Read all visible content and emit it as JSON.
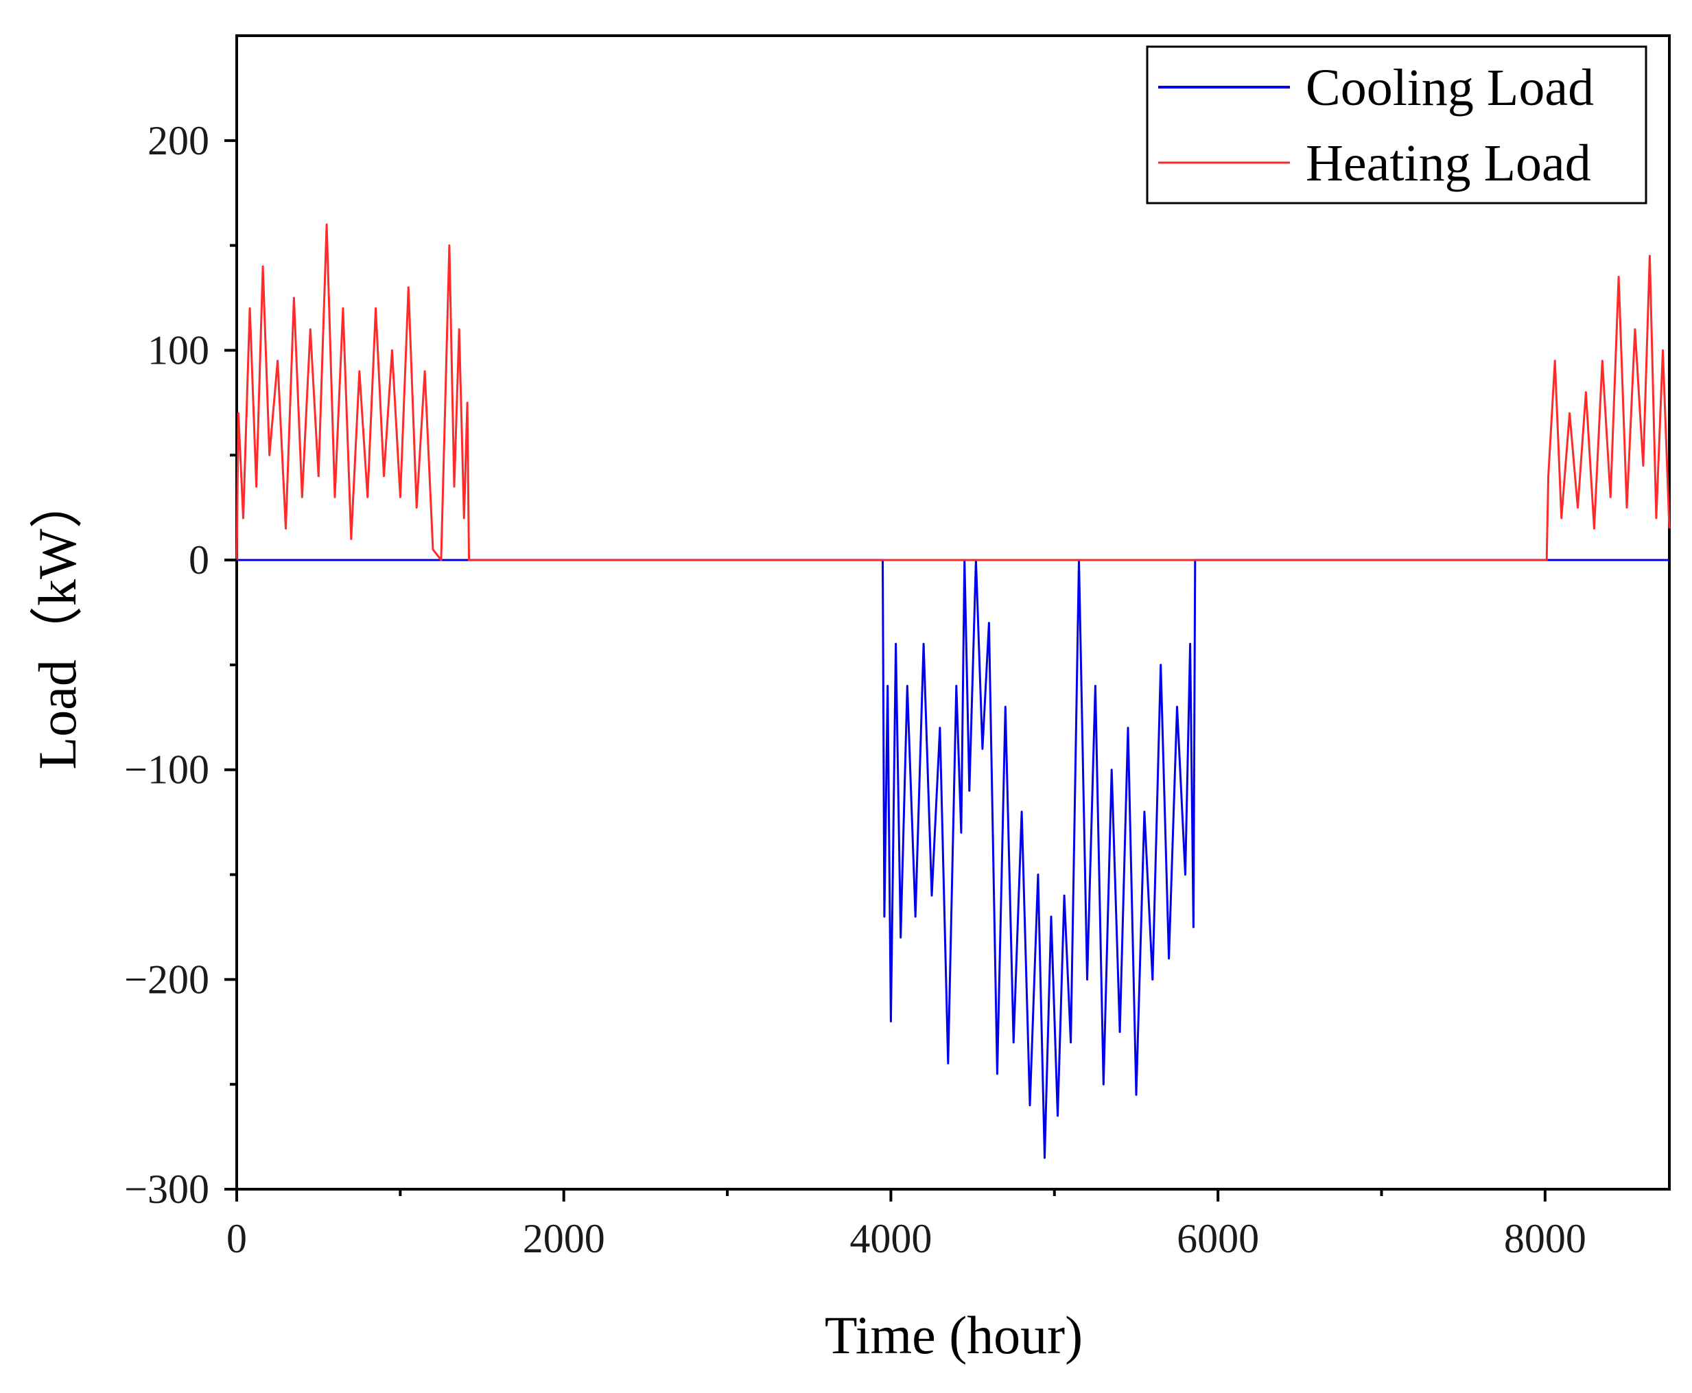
{
  "chart_data": {
    "type": "line",
    "title": "",
    "xlabel": "Time (hour)",
    "ylabel": "Load（kW）",
    "xlim": [
      0,
      8760
    ],
    "ylim": [
      -300,
      250
    ],
    "x_ticks": [
      0,
      2000,
      4000,
      6000,
      8000
    ],
    "x_tick_labels": [
      "0",
      "2000",
      "4000",
      "6000",
      "8000"
    ],
    "x_minor_ticks": [
      1000,
      3000,
      5000,
      7000
    ],
    "y_ticks": [
      -300,
      -200,
      -100,
      0,
      100,
      200
    ],
    "y_tick_labels": [
      "−300",
      "−200",
      "−100",
      "0",
      "100",
      "200"
    ],
    "grid": false,
    "legend_position": "top-right",
    "series": [
      {
        "name": "Cooling Load",
        "color": "#0000ee",
        "x": [
          0,
          3950,
          3960,
          3980,
          4000,
          4030,
          4060,
          4100,
          4150,
          4200,
          4250,
          4300,
          4350,
          4400,
          4430,
          4450,
          4480,
          4520,
          4560,
          4600,
          4650,
          4700,
          4750,
          4800,
          4850,
          4900,
          4940,
          4980,
          5020,
          5060,
          5100,
          5150,
          5200,
          5250,
          5300,
          5350,
          5400,
          5450,
          5500,
          5550,
          5600,
          5650,
          5700,
          5750,
          5800,
          5830,
          5850,
          5860,
          8760
        ],
        "y": [
          0,
          0,
          -170,
          -60,
          -220,
          -40,
          -180,
          -60,
          -170,
          -40,
          -160,
          -80,
          -240,
          -60,
          -130,
          0,
          -110,
          0,
          -90,
          -30,
          -245,
          -70,
          -230,
          -120,
          -260,
          -150,
          -285,
          -170,
          -265,
          -160,
          -230,
          0,
          -200,
          -60,
          -250,
          -100,
          -225,
          -80,
          -255,
          -120,
          -200,
          -50,
          -190,
          -70,
          -150,
          -40,
          -175,
          0,
          0
        ]
      },
      {
        "name": "Heating Load",
        "color": "#ff2a2a",
        "x": [
          0,
          10,
          40,
          80,
          120,
          160,
          200,
          250,
          300,
          350,
          400,
          450,
          500,
          550,
          600,
          650,
          700,
          750,
          800,
          850,
          900,
          950,
          1000,
          1050,
          1100,
          1150,
          1200,
          1250,
          1300,
          1330,
          1360,
          1390,
          1410,
          1420,
          8010,
          8020,
          8060,
          8100,
          8150,
          8200,
          8250,
          8300,
          8350,
          8400,
          8450,
          8500,
          8550,
          8600,
          8640,
          8680,
          8720,
          8760
        ],
        "y": [
          0,
          70,
          20,
          120,
          35,
          140,
          50,
          95,
          15,
          125,
          30,
          110,
          40,
          160,
          30,
          120,
          10,
          90,
          30,
          120,
          40,
          100,
          30,
          130,
          25,
          90,
          5,
          0,
          150,
          35,
          110,
          20,
          75,
          0,
          0,
          40,
          95,
          20,
          70,
          25,
          80,
          15,
          95,
          30,
          135,
          25,
          110,
          45,
          145,
          20,
          100,
          15
        ]
      }
    ]
  }
}
